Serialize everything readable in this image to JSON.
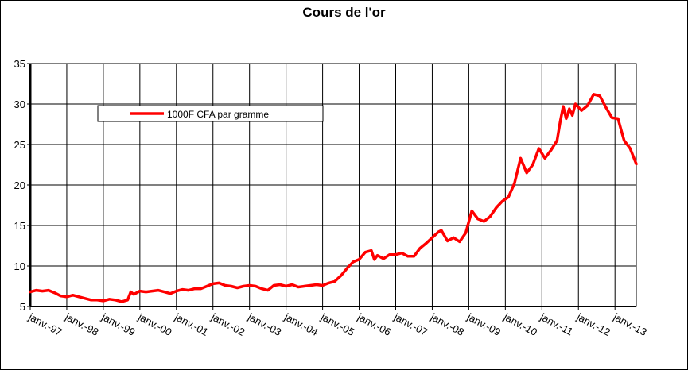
{
  "chart_data": {
    "type": "line",
    "title": "Cours de l'or",
    "xlabel": "",
    "ylabel": "",
    "ylim": [
      5,
      35
    ],
    "yticks": [
      "5",
      "10",
      "15",
      "20",
      "25",
      "30",
      "35"
    ],
    "xticks": [
      "janv.-97",
      "janv.-98",
      "janv.-99",
      "janv.-00",
      "janv.-01",
      "janv.-02",
      "janv.-03",
      "janv.-04",
      "janv.-05",
      "janv.-06",
      "janv.-07",
      "janv.-08",
      "janv.-09",
      "janv.-10",
      "janv.-11",
      "janv.-12",
      "janv.-13"
    ],
    "xlim": [
      "1997-01",
      "2013-08"
    ],
    "grid": true,
    "legend_position": "top-left",
    "series": [
      {
        "name": "1000F CFA par gramme",
        "color": "#ff0000",
        "x": [
          "1997-01",
          "1997-03",
          "1997-05",
          "1997-07",
          "1997-09",
          "1997-11",
          "1998-01",
          "1998-03",
          "1998-05",
          "1998-07",
          "1998-09",
          "1998-11",
          "1999-01",
          "1999-03",
          "1999-05",
          "1999-07",
          "1999-09",
          "1999-10",
          "1999-11",
          "2000-01",
          "2000-03",
          "2000-05",
          "2000-07",
          "2000-09",
          "2000-11",
          "2001-01",
          "2001-03",
          "2001-05",
          "2001-07",
          "2001-09",
          "2001-11",
          "2002-01",
          "2002-03",
          "2002-05",
          "2002-07",
          "2002-09",
          "2002-11",
          "2003-01",
          "2003-03",
          "2003-05",
          "2003-07",
          "2003-09",
          "2003-11",
          "2004-01",
          "2004-03",
          "2004-05",
          "2004-07",
          "2004-09",
          "2004-11",
          "2005-01",
          "2005-03",
          "2005-05",
          "2005-07",
          "2005-09",
          "2005-11",
          "2006-01",
          "2006-03",
          "2006-05",
          "2006-06",
          "2006-07",
          "2006-09",
          "2006-11",
          "2007-01",
          "2007-03",
          "2007-05",
          "2007-07",
          "2007-09",
          "2007-11",
          "2008-01",
          "2008-03",
          "2008-04",
          "2008-06",
          "2008-08",
          "2008-10",
          "2008-12",
          "2009-02",
          "2009-04",
          "2009-06",
          "2009-08",
          "2009-10",
          "2009-12",
          "2010-02",
          "2010-04",
          "2010-06",
          "2010-08",
          "2010-10",
          "2010-12",
          "2011-02",
          "2011-04",
          "2011-06",
          "2011-07",
          "2011-08",
          "2011-09",
          "2011-10",
          "2011-11",
          "2011-12",
          "2012-02",
          "2012-04",
          "2012-06",
          "2012-08",
          "2012-10",
          "2012-12",
          "2013-02",
          "2013-03",
          "2013-04",
          "2013-06",
          "2013-08"
        ],
        "values": [
          6.8,
          7.0,
          6.9,
          7.0,
          6.7,
          6.3,
          6.2,
          6.4,
          6.2,
          6.0,
          5.8,
          5.8,
          5.7,
          5.9,
          5.8,
          5.6,
          5.8,
          6.8,
          6.5,
          6.9,
          6.8,
          6.9,
          7.0,
          6.8,
          6.6,
          6.9,
          7.1,
          7.0,
          7.2,
          7.2,
          7.5,
          7.8,
          7.9,
          7.6,
          7.5,
          7.3,
          7.5,
          7.6,
          7.5,
          7.2,
          7.0,
          7.6,
          7.7,
          7.5,
          7.7,
          7.4,
          7.5,
          7.6,
          7.7,
          7.6,
          7.9,
          8.1,
          8.8,
          9.7,
          10.5,
          10.8,
          11.7,
          11.9,
          10.8,
          11.3,
          10.9,
          11.4,
          11.4,
          11.6,
          11.2,
          11.2,
          12.2,
          12.8,
          13.5,
          14.2,
          14.4,
          13.1,
          13.5,
          13.0,
          14.1,
          16.8,
          15.8,
          15.5,
          16.1,
          17.2,
          18.0,
          18.5,
          20.2,
          23.3,
          21.5,
          22.5,
          24.5,
          23.3,
          24.3,
          25.5,
          27.8,
          29.7,
          28.2,
          29.4,
          28.6,
          30.0,
          29.2,
          29.8,
          31.2,
          31.0,
          29.6,
          28.3,
          28.2,
          26.8,
          25.5,
          24.5,
          22.6
        ]
      }
    ]
  }
}
